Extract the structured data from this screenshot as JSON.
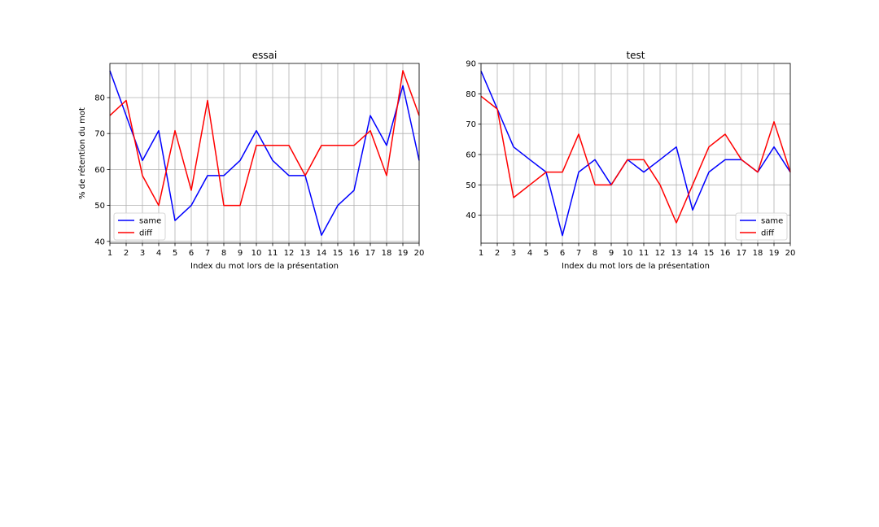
{
  "chart_data": [
    {
      "type": "line",
      "title": "essai",
      "xlabel": "Index du mot lors de la présentation",
      "ylabel": "% de rétention du mot",
      "x": [
        1,
        2,
        3,
        4,
        5,
        6,
        7,
        8,
        9,
        10,
        11,
        12,
        13,
        14,
        15,
        16,
        17,
        18,
        19,
        20
      ],
      "xlim": [
        1,
        20
      ],
      "ylim": [
        39.5,
        89.5
      ],
      "yticks": [
        40,
        50,
        60,
        70,
        80
      ],
      "grid": true,
      "legend_position": "lower-left",
      "series": [
        {
          "name": "same",
          "color": "#0000ff",
          "values": [
            87.5,
            75.0,
            62.5,
            70.8,
            45.8,
            50.0,
            58.3,
            58.3,
            62.5,
            70.8,
            62.5,
            58.3,
            58.3,
            41.7,
            50.0,
            54.2,
            75.0,
            66.7,
            83.3,
            62.5
          ]
        },
        {
          "name": "diff",
          "color": "#ff0000",
          "values": [
            75.0,
            79.2,
            58.3,
            50.0,
            70.8,
            54.2,
            79.2,
            50.0,
            50.0,
            66.7,
            66.7,
            66.7,
            58.3,
            66.7,
            66.7,
            66.7,
            70.8,
            58.3,
            87.5,
            75.0
          ]
        }
      ]
    },
    {
      "type": "line",
      "title": "test",
      "xlabel": "Index du mot lors de la présentation",
      "ylabel": "",
      "x": [
        1,
        2,
        3,
        4,
        5,
        6,
        7,
        8,
        9,
        10,
        11,
        12,
        13,
        14,
        15,
        16,
        17,
        18,
        19,
        20
      ],
      "xlim": [
        1,
        20
      ],
      "ylim": [
        30.8,
        90
      ],
      "yticks": [
        40,
        50,
        60,
        70,
        80,
        90
      ],
      "grid": true,
      "legend_position": "lower-right",
      "series": [
        {
          "name": "same",
          "color": "#0000ff",
          "values": [
            87.5,
            75.0,
            62.5,
            58.3,
            54.2,
            33.3,
            54.2,
            58.3,
            50.0,
            58.3,
            54.2,
            58.3,
            62.5,
            41.7,
            54.2,
            58.3,
            58.3,
            54.2,
            62.5,
            54.2
          ]
        },
        {
          "name": "diff",
          "color": "#ff0000",
          "values": [
            79.2,
            75.0,
            45.8,
            50.0,
            54.2,
            54.2,
            66.7,
            50.0,
            50.0,
            58.3,
            58.3,
            50.0,
            37.5,
            50.0,
            62.5,
            66.7,
            58.3,
            54.2,
            70.8,
            54.2
          ]
        }
      ]
    }
  ]
}
